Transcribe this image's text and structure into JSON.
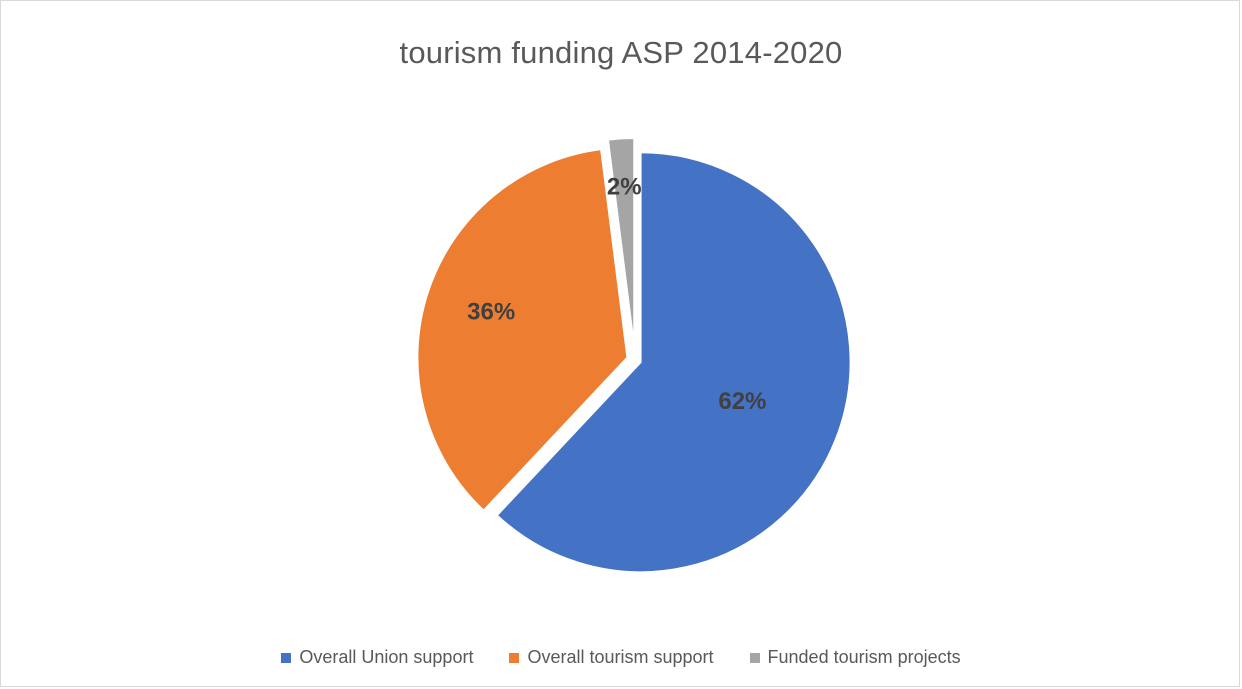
{
  "chart_data": {
    "type": "pie",
    "title": "tourism funding ASP 2014-2020",
    "categories": [
      "Overall Union support",
      "Overall tourism support",
      "Funded tourism projects"
    ],
    "values": [
      62,
      36,
      2
    ],
    "labels": [
      "62%",
      "36%",
      "2%"
    ],
    "colors": [
      "#4472c4",
      "#ed7d31",
      "#a5a5a5"
    ],
    "exploded": true,
    "legend_position": "bottom"
  }
}
